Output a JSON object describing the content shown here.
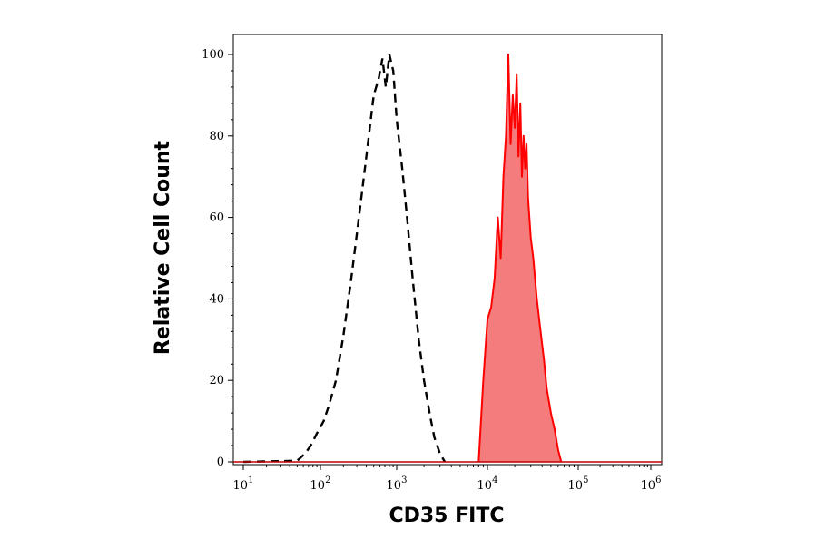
{
  "chart_data": {
    "type": "area",
    "title": "",
    "xlabel": "CD35 FITC",
    "ylabel": "Relative Cell Count",
    "xscale": "log",
    "xlim": [
      10,
      1000000
    ],
    "ylim": [
      0,
      100
    ],
    "yticks": [
      "0",
      "20",
      "40",
      "60",
      "80",
      "100"
    ],
    "xticks": [
      {
        "value": 10,
        "base": "10",
        "exp": "1"
      },
      {
        "value": 100,
        "base": "10",
        "exp": "2"
      },
      {
        "value": 1000,
        "base": "10",
        "exp": "3"
      },
      {
        "value": 10000,
        "base": "10",
        "exp": "4"
      },
      {
        "value": 100000,
        "base": "10",
        "exp": "5"
      },
      {
        "value": 1000000,
        "base": "10",
        "exp": "6"
      }
    ],
    "grid": false,
    "legend": "none",
    "series": [
      {
        "style": "dashed",
        "color": "#000000",
        "filled": false,
        "x": [
          10,
          50,
          63,
          75,
          90,
          110,
          130,
          160,
          200,
          250,
          320,
          400,
          500,
          580,
          650,
          720,
          800,
          900,
          1000,
          1150,
          1300,
          1500,
          1750,
          2000,
          2300,
          2600,
          3000,
          3400
        ],
        "y": [
          0,
          0.3,
          2,
          4,
          7,
          10,
          14,
          20,
          31,
          44,
          60,
          75,
          90,
          94,
          99,
          92,
          100,
          96,
          84,
          72,
          60,
          45,
          30,
          20,
          12,
          6,
          2,
          0
        ]
      },
      {
        "style": "solid",
        "color": "#ff0000",
        "fill": "#f47c7c",
        "filled": true,
        "x": [
          8000,
          9000,
          10000,
          11000,
          12000,
          13000,
          14000,
          15000,
          16000,
          17000,
          18000,
          19000,
          20000,
          21000,
          22000,
          23000,
          24000,
          25000,
          26000,
          27000,
          28000,
          30000,
          32000,
          35000,
          38000,
          42000,
          45000,
          50000,
          55000,
          60000,
          65000
        ],
        "y": [
          0,
          20,
          35,
          38,
          45,
          60,
          50,
          70,
          80,
          100,
          78,
          90,
          82,
          95,
          75,
          88,
          70,
          80,
          72,
          78,
          65,
          55,
          50,
          40,
          33,
          25,
          18,
          12,
          8,
          3,
          0
        ]
      }
    ]
  }
}
